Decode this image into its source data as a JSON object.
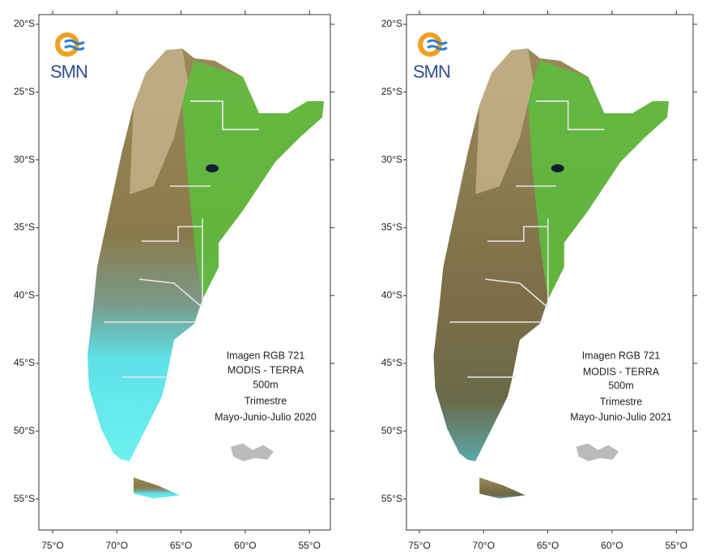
{
  "panels": [
    {
      "lat_labels": [
        "20°S",
        "25°S",
        "30°S",
        "35°S",
        "40°S",
        "45°S",
        "50°S",
        "55°S"
      ],
      "lon_labels": [
        "75°O",
        "70°O",
        "65°O",
        "60°O",
        "55°O"
      ],
      "logo": "SMN",
      "caption": [
        "Imagen RGB 721",
        "MODIS - TERRA",
        "500m",
        "Trimestre",
        "Mayo-Junio-Julio 2020"
      ]
    },
    {
      "lat_labels": [
        "20°S",
        "25°S",
        "30°S",
        "35°S",
        "40°S",
        "45°S",
        "50°S",
        "55°S"
      ],
      "lon_labels": [
        "75°O",
        "70°O",
        "65°O",
        "60°O",
        "55°O"
      ],
      "logo": "SMN",
      "caption": [
        "Imagen RGB 721",
        "MODIS - TERRA",
        "500m",
        "Trimestre",
        "Mayo-Junio-Julio 2021"
      ]
    }
  ]
}
